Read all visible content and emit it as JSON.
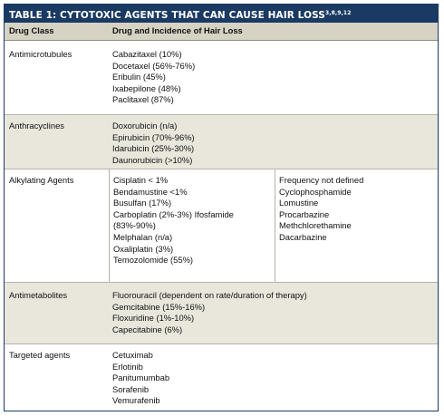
{
  "table": {
    "title": "TABLE 1: CYTOTOXIC AGENTS THAT CAN CAUSE HAIR LOSS",
    "title_refs": "3,8,9,12",
    "headers": {
      "drug_class": "Drug Class",
      "drug_incidence": "Drug and Incidence of Hair Loss"
    },
    "rows": [
      {
        "drug_class": "Antimicrotubules",
        "drugs": [
          "Cabazitaxel (10%)",
          "Docetaxel (56%-76%)",
          "Eribulin (45%)",
          "Ixabepilone (48%)",
          "Paclitaxel (87%)"
        ]
      },
      {
        "drug_class": "Anthracyclines",
        "drugs": [
          "Doxorubicin (n/a)",
          "Epirubicin (70%-96%)",
          "Idarubicin (25%-30%)",
          "Daunorubicin (>10%)"
        ]
      },
      {
        "drug_class": "Alkylating Agents",
        "drugs": [
          "Cisplatin < 1%",
          "Bendamustine <1%",
          "Busulfan (17%)",
          "Carboplatin (2%-3%) Ifosfamide",
          "(83%-90%)",
          "Melphalan (n/a)",
          "Oxaliplatin (3%)",
          "Temozolomide (55%)"
        ],
        "drugs_undefined": [
          "Frequency not defined",
          "Cyclophosphamide",
          "Lomustine",
          "Procarbazine",
          "Methchlorethamine",
          "Dacarbazine"
        ]
      },
      {
        "drug_class": "Antimetabolites",
        "drugs": [
          "Fluorouracil (dependent on rate/duration of therapy)",
          "Gemcitabine (15%-16%)",
          "Floxuridine (1%-10%)",
          "Capecitabine (6%)"
        ]
      },
      {
        "drug_class": "Targeted agents",
        "drugs": [
          "Cetuximab",
          "Erlotinib",
          "Panitumumbab",
          "Sorafenib",
          "Vemurafenib"
        ]
      }
    ]
  }
}
